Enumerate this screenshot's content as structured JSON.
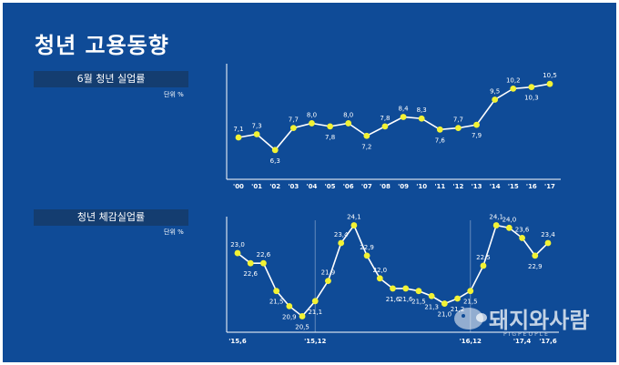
{
  "title": "청년 고용동향",
  "colors": {
    "background": "#0f4b97",
    "section_bar": "#143d70",
    "line": "#ffffff",
    "point": "#f2f234"
  },
  "watermark": {
    "text": "돼지와사람",
    "sub": "PIGPEOPLE"
  },
  "chart_data": [
    {
      "type": "line",
      "title": "6월 청년 실업률",
      "unit": "단위 %",
      "x": [
        "'00",
        "'01",
        "'02",
        "'03",
        "'04",
        "'05",
        "'06",
        "'07",
        "'08",
        "'09",
        "'10",
        "'11",
        "'12",
        "'13",
        "'14",
        "'15",
        "'16",
        "'17"
      ],
      "values": [
        7.1,
        7.3,
        6.3,
        7.7,
        8.0,
        7.8,
        8.0,
        7.2,
        7.8,
        8.4,
        8.3,
        7.6,
        7.7,
        7.9,
        9.5,
        10.2,
        10.3,
        10.5
      ],
      "value_labels": [
        "7,1",
        "7,3",
        "6,3",
        "7,7",
        "8,0",
        "7,8",
        "8,0",
        "7,2",
        "7,8",
        "8,4",
        "8,3",
        "7,6",
        "7,7",
        "7,9",
        "9,5",
        "10,2",
        "10,3",
        "10,5"
      ],
      "grid": false
    },
    {
      "type": "line",
      "title": "청년 체감실업률",
      "unit": "단위 %",
      "x": [
        "'15.6",
        "'15.7",
        "'15.8",
        "'15.9",
        "'15.10",
        "'15.11",
        "'15.12",
        "'16.1",
        "'16.2",
        "'16.3",
        "'16.4",
        "'16.5",
        "'16.6",
        "'16.7",
        "'16.8",
        "'16.9",
        "'16.10",
        "'16.11",
        "'16.12",
        "'17.1",
        "'17.2",
        "'17.3",
        "'17.4",
        "'17.5",
        "'17.6"
      ],
      "tick_labels": [
        "'15,6",
        "",
        "",
        "",
        "",
        "",
        "'15,12",
        "",
        "",
        "",
        "",
        "",
        "",
        "",
        "",
        "",
        "",
        "",
        "'16,12",
        "",
        "",
        "",
        "'17,4",
        "",
        "'17,6"
      ],
      "values": [
        23.0,
        22.6,
        22.6,
        21.5,
        20.9,
        20.5,
        21.1,
        21.9,
        23.4,
        24.1,
        22.9,
        22.0,
        21.6,
        21.6,
        21.5,
        21.3,
        21.0,
        21.2,
        21.5,
        22.5,
        24.1,
        24.0,
        23.6,
        22.9,
        23.4
      ],
      "value_labels": [
        "23,0",
        "22,6",
        "22,6",
        "21,5",
        "20,9",
        "20,5",
        "21,1",
        "21,9",
        "23,4",
        "24,1",
        "22,9",
        "22,0",
        "21,6",
        "21,6",
        "21,5",
        "21,3",
        "21,0",
        "21,2",
        "21,5",
        "22,5",
        "24,1",
        "24,0",
        "23,6",
        "22,9",
        "23,4"
      ],
      "grid": false
    }
  ]
}
